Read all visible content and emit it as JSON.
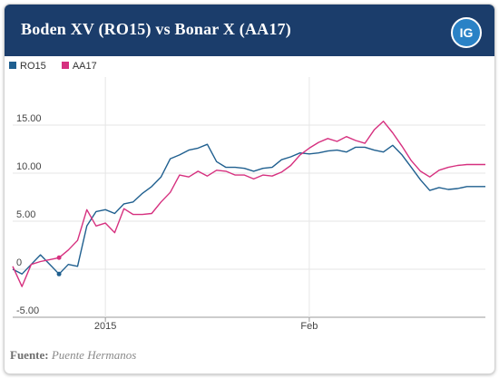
{
  "header": {
    "title": "Boden XV (RO15) vs Bonar X (AA17)",
    "logo": "IG"
  },
  "source": {
    "label": "Fuente:",
    "value": "Puente Hermanos"
  },
  "colors": {
    "header_bg": "#1b3d6b",
    "logo_bg": "#2a82c6",
    "grid": "#e6e6e6",
    "axis": "#999999"
  },
  "chart_data": {
    "type": "line",
    "ylim": [
      -5,
      20
    ],
    "yticks": [
      {
        "value": 15,
        "label": "15.00"
      },
      {
        "value": 10,
        "label": "10.00"
      },
      {
        "value": 5,
        "label": "5.00"
      },
      {
        "value": 0,
        "label": "0"
      },
      {
        "value": -5,
        "label": "-5.00"
      }
    ],
    "xlim": [
      0,
      51
    ],
    "xticks": [
      {
        "value": 10,
        "label": "2015"
      },
      {
        "value": 32,
        "label": "Feb"
      }
    ],
    "legend": "top-left",
    "grid": "horizontal",
    "series": [
      {
        "name": "RO15",
        "color": "#1f5f8f",
        "x": [
          0,
          1,
          2,
          3,
          4,
          5,
          6,
          7,
          8,
          9,
          10,
          11,
          12,
          13,
          14,
          15,
          16,
          17,
          18,
          19,
          20,
          21,
          22,
          23,
          24,
          25,
          26,
          27,
          28,
          29,
          30,
          31,
          32,
          33,
          34,
          35,
          36,
          37,
          38,
          39,
          40,
          41,
          42,
          43,
          44,
          45,
          46,
          47,
          48,
          49,
          50,
          51
        ],
        "values": [
          0.0,
          -0.5,
          0.5,
          1.5,
          0.5,
          -0.5,
          0.5,
          0.3,
          4.5,
          6.0,
          6.2,
          5.8,
          6.8,
          7.0,
          7.9,
          8.6,
          9.6,
          11.5,
          11.9,
          12.4,
          12.6,
          13.0,
          11.2,
          10.6,
          10.6,
          10.5,
          10.2,
          10.5,
          10.6,
          11.4,
          11.7,
          12.1,
          12.0,
          12.1,
          12.3,
          12.4,
          12.2,
          12.7,
          12.7,
          12.4,
          12.2,
          12.9,
          11.9,
          10.6,
          9.3,
          8.2,
          8.5,
          8.3,
          8.4,
          8.6,
          8.6,
          8.6
        ]
      },
      {
        "name": "AA17",
        "color": "#d6307f",
        "x": [
          0,
          1,
          2,
          3,
          4,
          5,
          6,
          7,
          8,
          9,
          10,
          11,
          12,
          13,
          14,
          15,
          16,
          17,
          18,
          19,
          20,
          21,
          22,
          23,
          24,
          25,
          26,
          27,
          28,
          29,
          30,
          31,
          32,
          33,
          34,
          35,
          36,
          37,
          38,
          39,
          40,
          41,
          42,
          43,
          44,
          45,
          46,
          47,
          48,
          49,
          50,
          51
        ],
        "values": [
          0.3,
          -1.8,
          0.5,
          0.8,
          1.0,
          1.2,
          2.0,
          3.0,
          6.2,
          4.5,
          4.8,
          3.8,
          6.3,
          5.7,
          5.7,
          5.8,
          7.0,
          8.0,
          9.8,
          9.6,
          10.2,
          9.7,
          10.3,
          10.2,
          9.8,
          9.8,
          9.4,
          9.8,
          9.7,
          10.1,
          10.8,
          11.9,
          12.6,
          13.2,
          13.6,
          13.3,
          13.8,
          13.4,
          13.1,
          14.5,
          15.4,
          14.2,
          12.8,
          11.3,
          10.2,
          9.6,
          10.3,
          10.6,
          10.8,
          10.9,
          10.9,
          10.9
        ]
      }
    ],
    "markers": [
      {
        "series": "RO15",
        "x": 5,
        "y": -0.5
      },
      {
        "series": "AA17",
        "x": 5,
        "y": 1.2
      }
    ]
  }
}
